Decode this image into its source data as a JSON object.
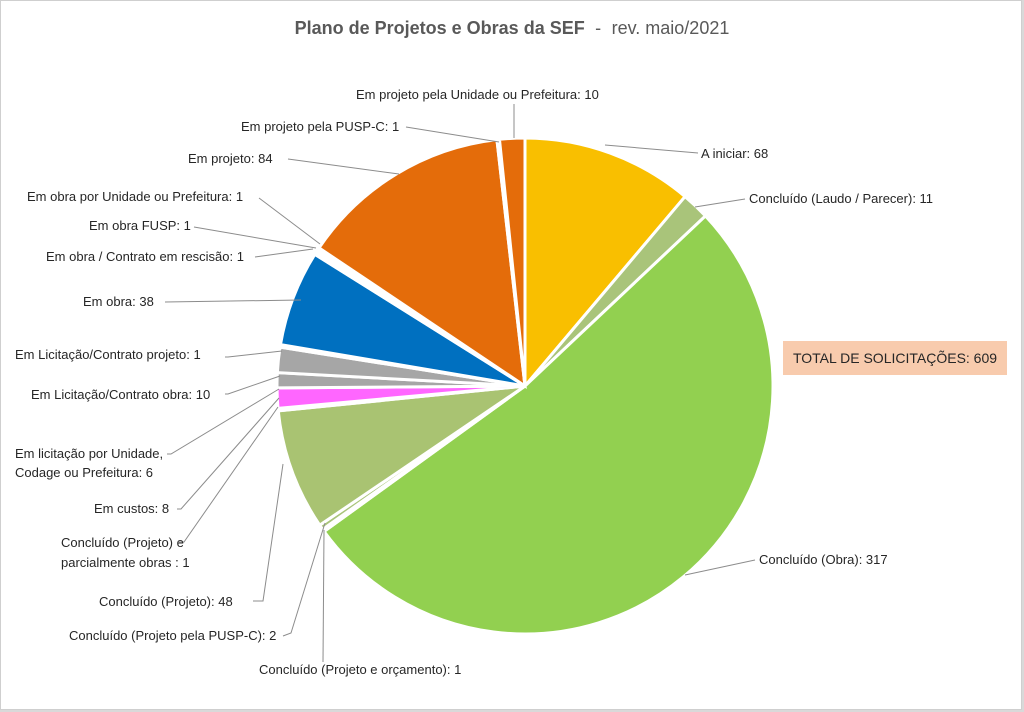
{
  "chart_data": {
    "type": "pie",
    "title": "Plano de Projetos e Obras da SEF",
    "subtitle": "rev. maio/2021",
    "slices": [
      {
        "label": "A iniciar: 68",
        "value": 68,
        "color": "#f9bf00"
      },
      {
        "label": "Concluído (Laudo / Parecer): 11",
        "value": 11,
        "color": "#a9c47a"
      },
      {
        "label": "Concluído (Obra): 317",
        "value": 317,
        "color": "#92d050"
      },
      {
        "label": "Concluído (Projeto e orçamento): 1",
        "value": 1,
        "color": "#a9c47a"
      },
      {
        "label": "Concluído (Projeto pela PUSP-C): 2",
        "value": 2,
        "color": "#a9c47a"
      },
      {
        "label": "Concluído (Projeto): 48",
        "value": 48,
        "color": "#a9c372"
      },
      {
        "label": "Concluído (Projeto) e parcialmente obras : 1",
        "value": 1,
        "color": "#a9c47a"
      },
      {
        "label": "Em custos: 8",
        "value": 8,
        "color": "#ff66ff"
      },
      {
        "label": "Em licitação por Unidade, Codage ou Prefeitura: 6",
        "value": 6,
        "color": "#a6a6a6"
      },
      {
        "label": "Em Licitação/Contrato obra: 10",
        "value": 10,
        "color": "#a6a6a6"
      },
      {
        "label": "Em Licitação/Contrato projeto: 1",
        "value": 1,
        "color": "#a6a6a6"
      },
      {
        "label": "Em obra: 38",
        "value": 38,
        "color": "#0070c0"
      },
      {
        "label": "Em obra / Contrato em rescisão: 1",
        "value": 1,
        "color": "#0070c0"
      },
      {
        "label": "Em obra FUSP: 1",
        "value": 1,
        "color": "#0070c0"
      },
      {
        "label": "Em obra por Unidade ou Prefeitura: 1",
        "value": 1,
        "color": "#0070c0"
      },
      {
        "label": "Em projeto: 84",
        "value": 84,
        "color": "#e46c0a"
      },
      {
        "label": "Em projeto pela PUSP-C: 1",
        "value": 1,
        "color": "#e46c0a"
      },
      {
        "label": "Em projeto pela Unidade ou Prefeitura: 10",
        "value": 10,
        "color": "#e46c0a"
      }
    ],
    "total_label": "TOTAL DE SOLICITAÇÕES: 609",
    "total_box_color": "#f8cbad"
  }
}
